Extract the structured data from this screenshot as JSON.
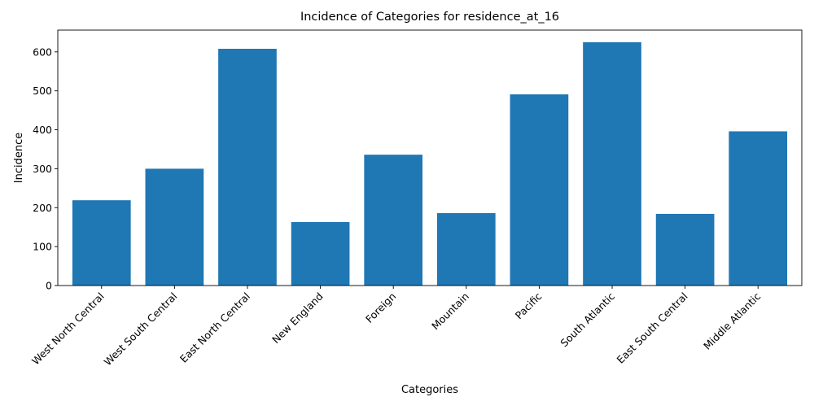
{
  "chart_data": {
    "type": "bar",
    "title": "Incidence of Categories for residence_at_16",
    "xlabel": "Categories",
    "ylabel": "Incidence",
    "categories": [
      "West North Central",
      "West South Central",
      "East North Central",
      "New England",
      "Foreign",
      "Mountain",
      "Pacific",
      "South Atlantic",
      "East South Central",
      "Middle Atlantic"
    ],
    "values": [
      219,
      300,
      608,
      163,
      336,
      186,
      491,
      625,
      184,
      396
    ],
    "yticks": [
      0,
      100,
      200,
      300,
      400,
      500,
      600
    ],
    "ylim": [
      0,
      656
    ],
    "grid": false,
    "legend": "none",
    "bar_color": "#1f77b4"
  }
}
